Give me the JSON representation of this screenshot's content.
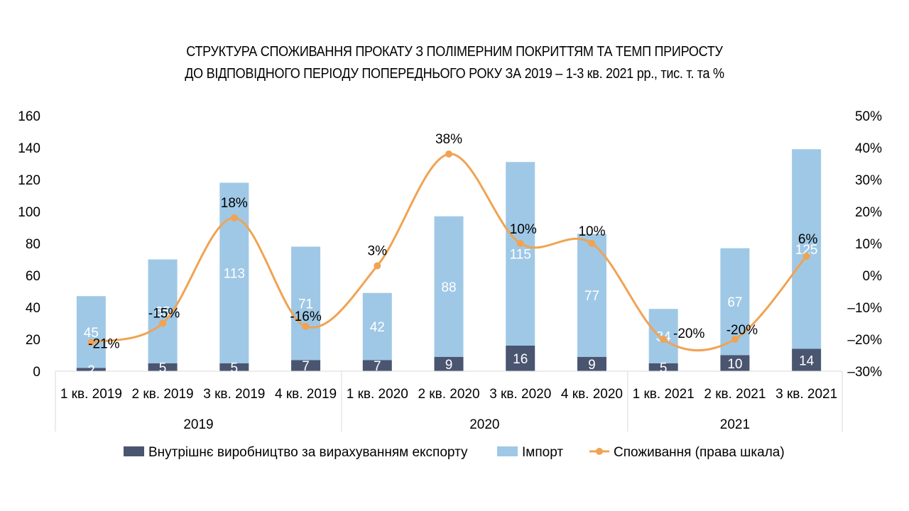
{
  "chart_data": {
    "type": "bar",
    "title": [
      "СТРУКТУРА СПОЖИВАННЯ ПРОКАТУ З ПОЛІМЕРНИМ ПОКРИТТЯМ ТА ТЕМП ПРИРОСТУ",
      "ДО ВІДПОВІДНОГО ПЕРІОДУ ПОПЕРЕДНЬОГО РОКУ ЗА 2019 – 1-3 кв. 2021 рр., тис. т. та %"
    ],
    "categories": [
      "1 кв. 2019",
      "2 кв. 2019",
      "3 кв. 2019",
      "4 кв. 2019",
      "1 кв. 2020",
      "2 кв. 2020",
      "3 кв. 2020",
      "4 кв. 2020",
      "1 кв. 2021",
      "2 кв. 2021",
      "3 кв. 2021"
    ],
    "groups": [
      {
        "label": "2019",
        "count": 4
      },
      {
        "label": "2020",
        "count": 4
      },
      {
        "label": "2021",
        "count": 3
      }
    ],
    "series": [
      {
        "name": "Внутрішнє виробництво за вирахуванням експорту",
        "kind": "stacked-bar",
        "axis": "left",
        "color": "#4a5570",
        "values": [
          2,
          5,
          5,
          7,
          7,
          9,
          16,
          9,
          5,
          10,
          14
        ]
      },
      {
        "name": "Імпорт",
        "kind": "stacked-bar",
        "axis": "left",
        "color": "#9fc8e6",
        "values": [
          45,
          65,
          113,
          71,
          42,
          88,
          115,
          77,
          34,
          67,
          125
        ]
      },
      {
        "name": "Споживання (права шкала)",
        "kind": "line",
        "axis": "right",
        "color": "#f0a352",
        "values": [
          -21,
          -15,
          18,
          -16,
          3,
          38,
          10,
          10,
          -20,
          -20,
          6
        ],
        "labels": [
          "-21%",
          "-15%",
          "18%",
          "-16%",
          "3%",
          "38%",
          "10%",
          "10%",
          "-20%",
          "-20%",
          "6%"
        ]
      }
    ],
    "ylim": [
      0,
      160
    ],
    "yticks": [
      "0",
      "20",
      "40",
      "60",
      "80",
      "100",
      "120",
      "140",
      "160"
    ],
    "y2lim": [
      -30,
      50
    ],
    "y2ticks": [
      "–30%",
      "–20%",
      "–10%",
      "0%",
      "10%",
      "20%",
      "30%",
      "40%",
      "50%"
    ],
    "legend_position": "bottom",
    "grid": false
  }
}
